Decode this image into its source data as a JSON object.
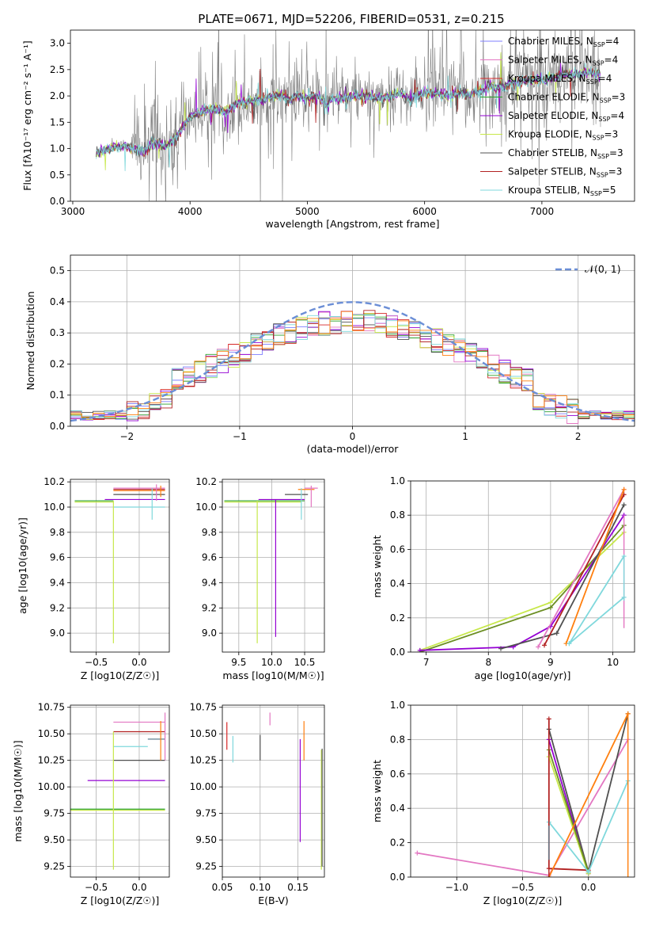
{
  "figure": {
    "title": "PLATE=0671, MJD=52206, FIBERID=0531, z=0.215"
  },
  "series_colors": {
    "Chabrier MILES": "#7f7fff",
    "Salpeter MILES": "#e377c2",
    "Kroupa MILES": "#d62728",
    "Chabrier ELODIE": "#2ca02c",
    "Salpeter ELODIE": "#9400d3",
    "Kroupa ELODIE": "#c7e84a",
    "Chabrier STELIB": "#505050",
    "Salpeter STELIB": "#b22222",
    "Kroupa STELIB": "#7fd8dc",
    "extra_orange": "#ff7f0e",
    "extra_olive": "#6b8e23",
    "extra_steel": "#5f7f8f"
  },
  "chart_data": [
    {
      "id": "spectrum",
      "type": "line",
      "title": "PLATE=0671, MJD=52206, FIBERID=0531, z=0.215",
      "xlabel": "wavelength [Angstrom, rest frame]",
      "ylabel": "Flux [fλ10⁻¹⁷ erg cm⁻² s⁻¹ A⁻¹]",
      "xlim": [
        2980,
        7790
      ],
      "ylim": [
        0,
        3.25
      ],
      "xticks": [
        3000,
        4000,
        5000,
        6000,
        7000
      ],
      "yticks": [
        0.0,
        0.5,
        1.0,
        1.5,
        2.0,
        2.5,
        3.0
      ],
      "grid": false,
      "legend_position": "top-right",
      "legend": [
        {
          "name": "Chabrier MILES, N",
          "sub": "SSP",
          "suffix": "=4"
        },
        {
          "name": "Salpeter MILES, N",
          "sub": "SSP",
          "suffix": "=4"
        },
        {
          "name": "Kroupa MILES, N",
          "sub": "SSP",
          "suffix": "=4"
        },
        {
          "name": "Chabrier ELODIE, N",
          "sub": "SSP",
          "suffix": "=3"
        },
        {
          "name": "Salpeter ELODIE, N",
          "sub": "SSP",
          "suffix": "=4"
        },
        {
          "name": "Kroupa ELODIE, N",
          "sub": "SSP",
          "suffix": "=3"
        },
        {
          "name": "Chabrier STELIB, N",
          "sub": "SSP",
          "suffix": "=3"
        },
        {
          "name": "Salpeter STELIB, N",
          "sub": "SSP",
          "suffix": "=3"
        },
        {
          "name": "Kroupa STELIB, N",
          "sub": "SSP",
          "suffix": "=5"
        }
      ],
      "data_continuum": [
        [
          3200,
          0.9
        ],
        [
          3300,
          1.0
        ],
        [
          3400,
          1.05
        ],
        [
          3500,
          1.0
        ],
        [
          3600,
          0.95
        ],
        [
          3700,
          1.1
        ],
        [
          3800,
          1.05
        ],
        [
          3900,
          1.25
        ],
        [
          3950,
          1.45
        ],
        [
          4000,
          1.6
        ],
        [
          4100,
          1.7
        ],
        [
          4200,
          1.75
        ],
        [
          4300,
          1.7
        ],
        [
          4400,
          1.85
        ],
        [
          4500,
          1.9
        ],
        [
          4600,
          1.92
        ],
        [
          4700,
          2.0
        ],
        [
          4800,
          2.0
        ],
        [
          4860,
          1.9
        ],
        [
          4900,
          2.0
        ],
        [
          5000,
          1.95
        ],
        [
          5100,
          2.0
        ],
        [
          5175,
          1.8
        ],
        [
          5200,
          1.95
        ],
        [
          5300,
          1.95
        ],
        [
          5400,
          2.0
        ],
        [
          5500,
          2.0
        ],
        [
          5600,
          1.95
        ],
        [
          5700,
          2.0
        ],
        [
          5800,
          2.05
        ],
        [
          5890,
          1.9
        ],
        [
          5900,
          2.0
        ],
        [
          6000,
          2.05
        ],
        [
          6100,
          2.05
        ],
        [
          6200,
          2.0
        ],
        [
          6300,
          2.05
        ],
        [
          6400,
          2.05
        ],
        [
          6500,
          2.1
        ],
        [
          6560,
          2.2
        ],
        [
          6600,
          2.15
        ],
        [
          6700,
          2.2
        ],
        [
          6800,
          2.25
        ],
        [
          6900,
          2.3
        ],
        [
          7000,
          2.3
        ],
        [
          7100,
          2.35
        ],
        [
          7200,
          2.4
        ],
        [
          7300,
          2.4
        ],
        [
          7400,
          2.45
        ],
        [
          7500,
          2.4
        ]
      ]
    },
    {
      "id": "residuals",
      "type": "line",
      "xlabel": "(data-model)/error",
      "ylabel": "Normed distribution",
      "xlim": [
        -2.5,
        2.5
      ],
      "ylim": [
        0,
        0.55
      ],
      "xticks": [
        -2,
        -1,
        0,
        1,
        2
      ],
      "yticks": [
        0.0,
        0.1,
        0.2,
        0.3,
        0.4,
        0.5
      ],
      "grid": true,
      "legend_position": "top-right",
      "reference_curve": {
        "name": "𝒩(0, 1)",
        "mean": 0,
        "sigma": 1
      },
      "bin_width": 0.1
    },
    {
      "id": "age_vs_Z",
      "type": "scatter",
      "xlabel": "Z [log10(Z/Z☉)]",
      "ylabel": "age  [log10(age/yr)]",
      "xlim": [
        -0.8,
        0.35
      ],
      "ylim": [
        8.85,
        10.22
      ],
      "xticks": [
        -0.5,
        0.0
      ],
      "yticks": [
        9.0,
        9.2,
        9.4,
        9.6,
        9.8,
        10.0,
        10.2
      ],
      "grid": true,
      "hbars": [
        {
          "y": 10.05,
          "x0": -0.75,
          "x1": -0.3,
          "color": "#2ca02c"
        },
        {
          "y": 10.04,
          "x0": -0.75,
          "x1": -0.3,
          "color": "#c7e84a"
        },
        {
          "y": 10.06,
          "x0": -0.4,
          "x1": 0.3,
          "color": "#9400d3"
        },
        {
          "y": 10.1,
          "x0": -0.3,
          "x1": 0.3,
          "color": "#505050"
        },
        {
          "y": 10.13,
          "x0": -0.3,
          "x1": 0.3,
          "color": "#ff7f0e"
        },
        {
          "y": 10.15,
          "x0": -0.3,
          "x1": 0.3,
          "color": "#e377c2"
        },
        {
          "y": 10.14,
          "x0": -0.3,
          "x1": 0.3,
          "color": "#b22222"
        },
        {
          "y": 10.0,
          "x0": -0.3,
          "x1": 0.3,
          "color": "#7fd8dc"
        }
      ],
      "vbars": [
        {
          "x": -0.3,
          "y0": 8.92,
          "y1": 10.05,
          "color": "#c7e84a"
        },
        {
          "x": 0.15,
          "y0": 9.9,
          "y1": 10.15,
          "color": "#7fd8dc"
        },
        {
          "x": 0.2,
          "y0": 10.05,
          "y1": 10.18,
          "color": "#e377c2"
        },
        {
          "x": 0.25,
          "y0": 10.08,
          "y1": 10.17,
          "color": "#ff7f0e"
        }
      ]
    },
    {
      "id": "age_vs_mass",
      "type": "scatter",
      "xlabel": "mass [log10(M/M☉)]",
      "ylabel": "",
      "xlim": [
        9.25,
        10.8
      ],
      "ylim": [
        8.85,
        10.22
      ],
      "xticks": [
        9.5,
        10.0,
        10.5
      ],
      "yticks": [
        9.0,
        9.2,
        9.4,
        9.6,
        9.8,
        10.0,
        10.2
      ],
      "grid": true,
      "hbars": [
        {
          "y": 10.05,
          "x0": 9.28,
          "x1": 10.5,
          "color": "#2ca02c"
        },
        {
          "y": 10.04,
          "x0": 9.28,
          "x1": 10.45,
          "color": "#c7e84a"
        },
        {
          "y": 10.06,
          "x0": 9.8,
          "x1": 10.5,
          "color": "#9400d3"
        },
        {
          "y": 10.1,
          "x0": 10.2,
          "x1": 10.55,
          "color": "#505050"
        },
        {
          "y": 10.14,
          "x0": 10.4,
          "x1": 10.65,
          "color": "#ff7f0e"
        },
        {
          "y": 10.15,
          "x0": 10.5,
          "x1": 10.7,
          "color": "#e377c2"
        }
      ],
      "vbars": [
        {
          "x": 9.78,
          "y0": 8.92,
          "y1": 10.05,
          "color": "#c7e84a"
        },
        {
          "x": 10.06,
          "y0": 8.97,
          "y1": 10.06,
          "color": "#9400d3"
        },
        {
          "x": 10.45,
          "y0": 9.9,
          "y1": 10.15,
          "color": "#7fd8dc"
        },
        {
          "x": 10.6,
          "y0": 10.0,
          "y1": 10.17,
          "color": "#e377c2"
        }
      ]
    },
    {
      "id": "massweight_vs_age",
      "type": "line",
      "xlabel": "age  [log10(age/yr)]",
      "ylabel": "mass weight",
      "xlim": [
        6.75,
        10.35
      ],
      "ylim": [
        0,
        1.0
      ],
      "xticks": [
        7,
        8,
        9,
        10
      ],
      "yticks": [
        0.0,
        0.2,
        0.4,
        0.6,
        0.8,
        1.0
      ],
      "grid": true,
      "series": [
        {
          "color": "#c7e84a",
          "points": [
            [
              6.9,
              0.01
            ],
            [
              9.0,
              0.29
            ],
            [
              10.18,
              0.7
            ]
          ]
        },
        {
          "color": "#6b8e23",
          "points": [
            [
              6.9,
              0.0
            ],
            [
              9.0,
              0.26
            ],
            [
              10.18,
              0.74
            ]
          ]
        },
        {
          "color": "#9400d3",
          "points": [
            [
              6.9,
              0.01
            ],
            [
              8.4,
              0.03
            ],
            [
              9.0,
              0.15
            ],
            [
              10.18,
              0.8
            ]
          ]
        },
        {
          "color": "#505050",
          "points": [
            [
              8.2,
              0.02
            ],
            [
              9.1,
              0.11
            ],
            [
              10.18,
              0.86
            ]
          ]
        },
        {
          "color": "#e377c2",
          "points": [
            [
              8.8,
              0.03
            ],
            [
              10.18,
              0.95
            ]
          ]
        },
        {
          "color": "#b22222",
          "points": [
            [
              8.9,
              0.04
            ],
            [
              10.18,
              0.92
            ]
          ]
        },
        {
          "color": "#ff7f0e",
          "points": [
            [
              9.25,
              0.05
            ],
            [
              10.18,
              0.95
            ]
          ]
        },
        {
          "color": "#7fd8dc",
          "points": [
            [
              9.3,
              0.05
            ],
            [
              10.18,
              0.32
            ]
          ]
        },
        {
          "color": "#7fd8dc",
          "points": [
            [
              9.3,
              0.05
            ],
            [
              10.18,
              0.56
            ]
          ]
        }
      ],
      "errorbars": [
        {
          "x": 10.18,
          "y0": 0.14,
          "y1": 0.8,
          "color": "#e377c2"
        },
        {
          "x": 10.18,
          "y0": 0.3,
          "y1": 0.57,
          "color": "#7fd8dc"
        }
      ]
    },
    {
      "id": "mass_vs_Z",
      "type": "scatter",
      "xlabel": "Z [log10(Z/Z☉)]",
      "ylabel": "mass [log10(M/M☉)]",
      "xlim": [
        -0.8,
        0.35
      ],
      "ylim": [
        9.15,
        10.77
      ],
      "xticks": [
        -0.5,
        0.0
      ],
      "yticks": [
        9.25,
        9.5,
        9.75,
        10.0,
        10.25,
        10.5,
        10.75
      ],
      "grid": true,
      "hbars": [
        {
          "y": 9.79,
          "x0": -0.8,
          "x1": 0.3,
          "color": "#2ca02c"
        },
        {
          "y": 9.78,
          "x0": -0.8,
          "x1": 0.3,
          "color": "#c7e84a"
        },
        {
          "y": 10.06,
          "x0": -0.6,
          "x1": 0.3,
          "color": "#9400d3"
        },
        {
          "y": 10.25,
          "x0": -0.3,
          "x1": 0.3,
          "color": "#505050"
        },
        {
          "y": 10.38,
          "x0": -0.3,
          "x1": 0.1,
          "color": "#7fd8dc"
        },
        {
          "y": 10.45,
          "x0": 0.1,
          "x1": 0.3,
          "color": "#5f7f8f"
        },
        {
          "y": 10.52,
          "x0": -0.3,
          "x1": 0.3,
          "color": "#b22222"
        },
        {
          "y": 10.61,
          "x0": -0.3,
          "x1": 0.3,
          "color": "#e377c2"
        }
      ],
      "vbars": [
        {
          "x": -0.3,
          "y0": 9.22,
          "y1": 10.52,
          "color": "#c7e84a"
        },
        {
          "x": 0.3,
          "y0": 10.25,
          "y1": 10.7,
          "color": "#e377c2"
        },
        {
          "x": 0.25,
          "y0": 10.25,
          "y1": 10.62,
          "color": "#ff7f0e"
        }
      ]
    },
    {
      "id": "mass_vs_EBV",
      "type": "scatter",
      "xlabel": "E(B-V)",
      "ylabel": "",
      "xlim": [
        0.05,
        0.185
      ],
      "ylim": [
        9.15,
        10.77
      ],
      "xticks": [
        0.05,
        0.1,
        0.15
      ],
      "yticks": [
        9.25,
        9.5,
        9.75,
        10.0,
        10.25,
        10.5,
        10.75
      ],
      "grid": true,
      "vbars": [
        {
          "x": 0.056,
          "y0": 10.35,
          "y1": 10.61,
          "color": "#d62728"
        },
        {
          "x": 0.064,
          "y0": 10.23,
          "y1": 10.48,
          "color": "#7fd8dc"
        },
        {
          "x": 0.1,
          "y0": 10.25,
          "y1": 10.49,
          "color": "#505050"
        },
        {
          "x": 0.113,
          "y0": 10.58,
          "y1": 10.7,
          "color": "#e377c2"
        },
        {
          "x": 0.153,
          "y0": 9.48,
          "y1": 10.45,
          "color": "#9400d3"
        },
        {
          "x": 0.158,
          "y0": 10.25,
          "y1": 10.62,
          "color": "#ff7f0e"
        },
        {
          "x": 0.181,
          "y0": 9.22,
          "y1": 10.35,
          "color": "#c7e84a"
        },
        {
          "x": 0.182,
          "y0": 9.25,
          "y1": 10.36,
          "color": "#505050"
        }
      ]
    },
    {
      "id": "massweight_vs_Z",
      "type": "line",
      "xlabel": "Z [log10(Z/Z☉)]",
      "ylabel": "mass weight",
      "xlim": [
        -1.35,
        0.35
      ],
      "ylim": [
        0,
        1.0
      ],
      "xticks": [
        -1.0,
        -0.5,
        0.0
      ],
      "yticks": [
        0.0,
        0.2,
        0.4,
        0.6,
        0.8,
        1.0
      ],
      "grid": true,
      "series": [
        {
          "color": "#e377c2",
          "points": [
            [
              -1.3,
              0.14
            ],
            [
              -0.3,
              0.01
            ],
            [
              0.3,
              0.8
            ]
          ]
        },
        {
          "color": "#b22222",
          "points": [
            [
              -0.3,
              0.92
            ],
            [
              -0.3,
              0.05
            ],
            [
              0.0,
              0.04
            ]
          ]
        },
        {
          "color": "#505050",
          "points": [
            [
              -0.3,
              0.86
            ],
            [
              0.0,
              0.03
            ],
            [
              0.3,
              0.95
            ]
          ]
        },
        {
          "color": "#9400d3",
          "points": [
            [
              -0.3,
              0.8
            ],
            [
              0.0,
              0.02
            ]
          ]
        },
        {
          "color": "#c7e84a",
          "points": [
            [
              -0.3,
              0.7
            ],
            [
              0.0,
              0.02
            ]
          ]
        },
        {
          "color": "#6b8e23",
          "points": [
            [
              -0.3,
              0.74
            ],
            [
              0.0,
              0.03
            ]
          ]
        },
        {
          "color": "#7fd8dc",
          "points": [
            [
              -0.3,
              0.32
            ],
            [
              0.0,
              0.03
            ],
            [
              0.3,
              0.56
            ]
          ]
        },
        {
          "color": "#ff7f0e",
          "points": [
            [
              -0.3,
              0.0
            ],
            [
              0.3,
              0.95
            ]
          ]
        }
      ],
      "errorbars": [
        {
          "x": -0.3,
          "y0": 0.0,
          "y1": 0.92,
          "color": "#b22222"
        },
        {
          "x": 0.3,
          "y0": 0.0,
          "y1": 0.95,
          "color": "#ff7f0e"
        },
        {
          "x": -0.3,
          "y0": 0.1,
          "y1": 0.3,
          "color": "#5f7f8f"
        }
      ]
    }
  ]
}
